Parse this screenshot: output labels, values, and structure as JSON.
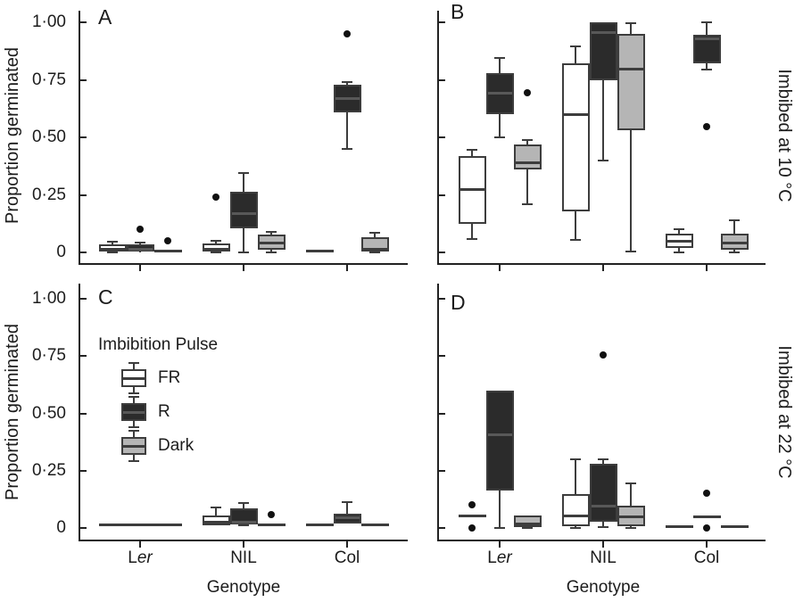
{
  "figure": {
    "y_axis_label": "Proportion germinated",
    "x_axis_label": "Genotype",
    "row_labels": [
      "Imbibed at 10 °C",
      "Imbibed at 22 °C"
    ],
    "y_ticks": [
      {
        "value": 0,
        "label": "0"
      },
      {
        "value": 0.25,
        "label": "0·25"
      },
      {
        "value": 0.5,
        "label": "0·50"
      },
      {
        "value": 0.75,
        "label": "0·75"
      },
      {
        "value": 1.0,
        "label": "1·00"
      }
    ],
    "x_categories": [
      {
        "normal": "L",
        "italic": "er"
      },
      {
        "normal": "NIL",
        "italic": ""
      },
      {
        "normal": "Col",
        "italic": ""
      }
    ],
    "legend": {
      "title": "Imbibition Pulse",
      "items": [
        {
          "label": "FR",
          "fill": "#ffffff"
        },
        {
          "label": "R",
          "fill": "#2b2b2b"
        },
        {
          "label": "Dark",
          "fill": "#b5b5b5"
        }
      ]
    },
    "colors": {
      "axis": "#222222",
      "box_border": "#3d3d3d",
      "outlier": "#111111"
    }
  },
  "chart_data": {
    "type": "boxplot-grid",
    "ylabel": "Proportion germinated",
    "xlabel": "Genotype",
    "ylim": [
      0,
      1
    ],
    "categories": [
      "Ler",
      "NIL",
      "Col"
    ],
    "series_key": "Imbibition Pulse",
    "panels": [
      {
        "panel": "A",
        "condition": "Imbibed at 10 °C",
        "groups": [
          {
            "genotype": "Ler",
            "boxes": [
              {
                "pulse": "FR",
                "lo": 0,
                "q1": 0.003,
                "med": 0.012,
                "q3": 0.035,
                "hi": 0.047,
                "outliers": []
              },
              {
                "pulse": "R",
                "lo": 0,
                "q1": 0.002,
                "med": 0.012,
                "q3": 0.035,
                "hi": 0.043,
                "outliers": [
                  0.1
                ]
              },
              {
                "pulse": "Dark",
                "flat": 0.005,
                "outliers": [
                  0.05
                ]
              }
            ]
          },
          {
            "genotype": "NIL",
            "boxes": [
              {
                "pulse": "FR",
                "lo": 0,
                "q1": 0.005,
                "med": 0.015,
                "q3": 0.04,
                "hi": 0.05,
                "outliers": [
                  0.24
                ]
              },
              {
                "pulse": "R",
                "lo": 0,
                "q1": 0.105,
                "med": 0.167,
                "q3": 0.265,
                "hi": 0.345,
                "outliers": []
              },
              {
                "pulse": "Dark",
                "lo": 0,
                "q1": 0.012,
                "med": 0.04,
                "q3": 0.078,
                "hi": 0.09,
                "outliers": []
              }
            ]
          },
          {
            "genotype": "Col",
            "boxes": [
              {
                "pulse": "FR",
                "flat": 0.005,
                "outliers": []
              },
              {
                "pulse": "R",
                "lo": 0.45,
                "q1": 0.61,
                "med": 0.67,
                "q3": 0.73,
                "hi": 0.74,
                "outliers": [
                  0.95
                ]
              },
              {
                "pulse": "Dark",
                "lo": 0,
                "q1": 0.003,
                "med": 0.012,
                "q3": 0.066,
                "hi": 0.085,
                "outliers": []
              }
            ]
          }
        ]
      },
      {
        "panel": "B",
        "condition": "Imbibed at 10 °C",
        "groups": [
          {
            "genotype": "Ler",
            "boxes": [
              {
                "pulse": "FR",
                "lo": 0.058,
                "q1": 0.124,
                "med": 0.275,
                "q3": 0.42,
                "hi": 0.445,
                "outliers": []
              },
              {
                "pulse": "R",
                "lo": 0.5,
                "q1": 0.6,
                "med": 0.69,
                "q3": 0.78,
                "hi": 0.845,
                "outliers": []
              },
              {
                "pulse": "Dark",
                "lo": 0.21,
                "q1": 0.36,
                "med": 0.39,
                "q3": 0.47,
                "hi": 0.49,
                "outliers": [
                  0.695
                ]
              }
            ]
          },
          {
            "genotype": "NIL",
            "boxes": [
              {
                "pulse": "FR",
                "lo": 0.055,
                "q1": 0.18,
                "med": 0.6,
                "q3": 0.82,
                "hi": 0.895,
                "outliers": []
              },
              {
                "pulse": "R",
                "lo": 0.4,
                "q1": 0.75,
                "med": 0.955,
                "q3": 1.0,
                "hi": 1.0,
                "outliers": []
              },
              {
                "pulse": "Dark",
                "lo": 0.005,
                "q1": 0.53,
                "med": 0.795,
                "q3": 0.95,
                "hi": 0.995,
                "outliers": []
              }
            ]
          },
          {
            "genotype": "Col",
            "boxes": [
              {
                "pulse": "FR",
                "lo": 0,
                "q1": 0.02,
                "med": 0.05,
                "q3": 0.08,
                "hi": 0.1,
                "outliers": []
              },
              {
                "pulse": "R",
                "lo": 0.795,
                "q1": 0.82,
                "med": 0.93,
                "q3": 0.945,
                "hi": 1.0,
                "outliers": [
                  0.545
                ]
              },
              {
                "pulse": "Dark",
                "lo": 0,
                "q1": 0.012,
                "med": 0.042,
                "q3": 0.08,
                "hi": 0.14,
                "outliers": []
              }
            ]
          }
        ]
      },
      {
        "panel": "C",
        "condition": "Imbibed at 22 °C",
        "groups": [
          {
            "genotype": "Ler",
            "boxes": [
              {
                "pulse": "FR",
                "flat": 0.012,
                "outliers": []
              },
              {
                "pulse": "R",
                "flat": 0.012,
                "outliers": []
              },
              {
                "pulse": "Dark",
                "flat": 0.012,
                "outliers": []
              }
            ]
          },
          {
            "genotype": "NIL",
            "boxes": [
              {
                "pulse": "FR",
                "lo": 0.012,
                "q1": 0.012,
                "med": 0.025,
                "q3": 0.054,
                "hi": 0.09,
                "outliers": []
              },
              {
                "pulse": "R",
                "lo": 0.012,
                "q1": 0.015,
                "med": 0.025,
                "q3": 0.086,
                "hi": 0.109,
                "outliers": []
              },
              {
                "pulse": "Dark",
                "flat": 0.012,
                "outliers": [
                  0.06
                ]
              }
            ]
          },
          {
            "genotype": "Col",
            "boxes": [
              {
                "pulse": "FR",
                "flat": 0.012,
                "outliers": []
              },
              {
                "pulse": "R",
                "lo": 0.019,
                "q1": 0.019,
                "med": 0.043,
                "q3": 0.062,
                "hi": 0.113,
                "outliers": []
              },
              {
                "pulse": "Dark",
                "flat": 0.012,
                "outliers": []
              }
            ]
          }
        ]
      },
      {
        "panel": "D",
        "condition": "Imbibed at 22 °C",
        "groups": [
          {
            "genotype": "Ler",
            "boxes": [
              {
                "pulse": "FR",
                "flat": 0.054,
                "outliers": [
                  0.1,
                  0
                ]
              },
              {
                "pulse": "R",
                "lo": 0,
                "q1": 0.163,
                "med": 0.405,
                "q3": 0.6,
                "hi": 0.6,
                "outliers": []
              },
              {
                "pulse": "Dark",
                "lo": 0,
                "q1": 0.005,
                "med": 0.019,
                "q3": 0.054,
                "hi": 0.054,
                "outliers": []
              }
            ]
          },
          {
            "genotype": "NIL",
            "boxes": [
              {
                "pulse": "FR",
                "lo": 0,
                "q1": 0.008,
                "med": 0.054,
                "q3": 0.148,
                "hi": 0.3,
                "outliers": []
              },
              {
                "pulse": "R",
                "lo": 0.005,
                "q1": 0.027,
                "med": 0.097,
                "q3": 0.28,
                "hi": 0.3,
                "outliers": [
                  0.755
                ]
              },
              {
                "pulse": "Dark",
                "lo": 0,
                "q1": 0.008,
                "med": 0.047,
                "q3": 0.097,
                "hi": 0.195,
                "outliers": []
              }
            ]
          },
          {
            "genotype": "Col",
            "boxes": [
              {
                "pulse": "FR",
                "flat": 0.005,
                "outliers": []
              },
              {
                "pulse": "R",
                "flat": 0.05,
                "outliers": [
                  0.15,
                  0
                ]
              },
              {
                "pulse": "Dark",
                "flat": 0.005,
                "outliers": []
              }
            ]
          }
        ]
      }
    ]
  }
}
